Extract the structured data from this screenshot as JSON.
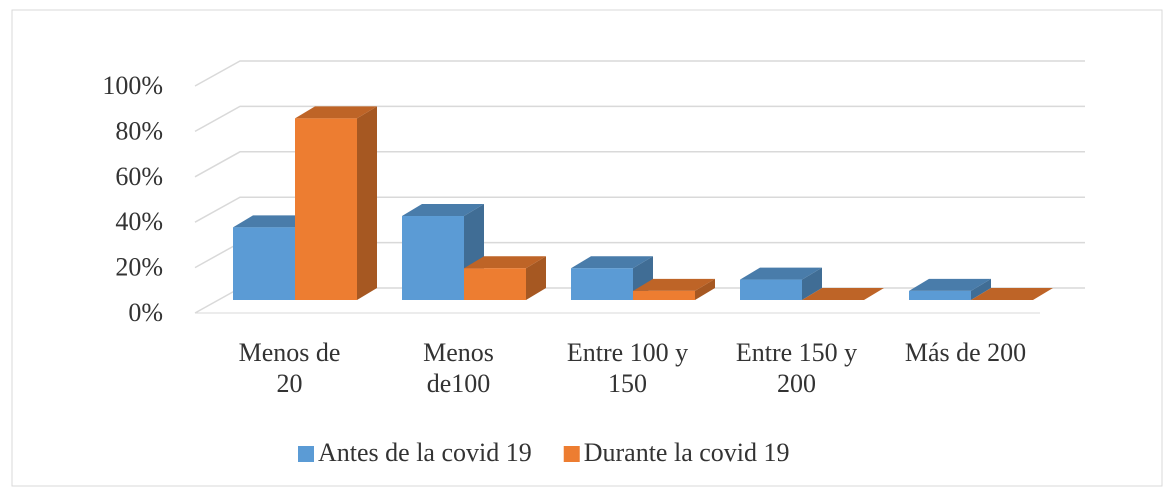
{
  "chart_data": {
    "type": "bar3d",
    "categories": [
      "Menos de 20",
      "Menos de100",
      "Entre 100 y 150",
      "Entre 150 y 200",
      "Más de 200"
    ],
    "series": [
      {
        "name": "Antes de la covid 19",
        "color": "#5b9bd5",
        "values": [
          32,
          37,
          14,
          9,
          4
        ]
      },
      {
        "name": "Durante la covid 19",
        "color": "#ed7d31",
        "values": [
          80,
          14,
          4,
          0,
          0
        ]
      }
    ],
    "ylim": [
      0,
      100
    ],
    "yticks": [
      {
        "value": 0,
        "label": "0%"
      },
      {
        "value": 20,
        "label": "20%"
      },
      {
        "value": 40,
        "label": "40%"
      },
      {
        "value": 60,
        "label": "60%"
      },
      {
        "value": 80,
        "label": "80%"
      },
      {
        "value": 100,
        "label": "100%"
      }
    ],
    "grid": true,
    "legend": "bottom"
  }
}
